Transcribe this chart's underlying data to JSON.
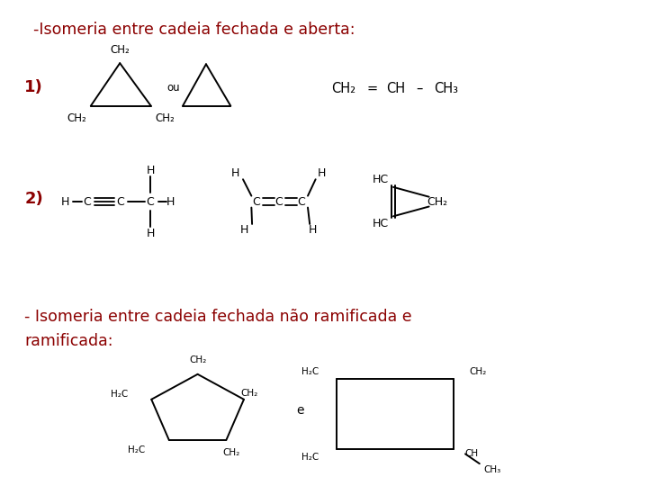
{
  "bg_color": "#ffffff",
  "title1": "-Isomeria entre cadeia fechada e aberta:",
  "title1_color": "#8B0000",
  "title2_line1": "- Isomeria entre cadeia fechada não ramificada e",
  "title2_line2": "ramificada:",
  "title2_color": "#8B0000",
  "label1": "1)",
  "label2": "2)",
  "label_color": "#8B0000"
}
